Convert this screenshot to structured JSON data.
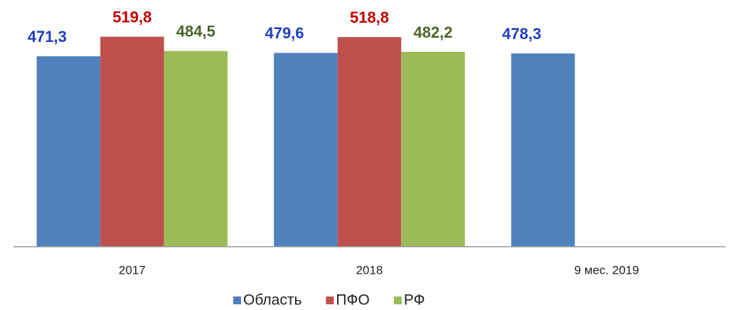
{
  "chart_data": {
    "type": "bar",
    "categories": [
      "2017",
      "2018",
      "9 мес. 2019"
    ],
    "series": [
      {
        "name": "Область",
        "color": "#4f81bd",
        "label_color": "#1f3fbf",
        "values": [
          471.3,
          479.6,
          478.3
        ],
        "value_labels": [
          "471,3",
          "479,6",
          "478,3"
        ]
      },
      {
        "name": "ПФО",
        "color": "#c0504d",
        "label_color": "#c00000",
        "values": [
          519.8,
          518.8,
          null
        ],
        "value_labels": [
          "519,8",
          "518,8",
          null
        ]
      },
      {
        "name": "РФ",
        "color": "#9bbb59",
        "label_color": "#4f6228",
        "values": [
          484.5,
          482.2,
          null
        ],
        "value_labels": [
          "484,5",
          "482,2",
          null
        ]
      }
    ],
    "ylim": [
      0,
      600
    ],
    "legend": "bottom"
  }
}
